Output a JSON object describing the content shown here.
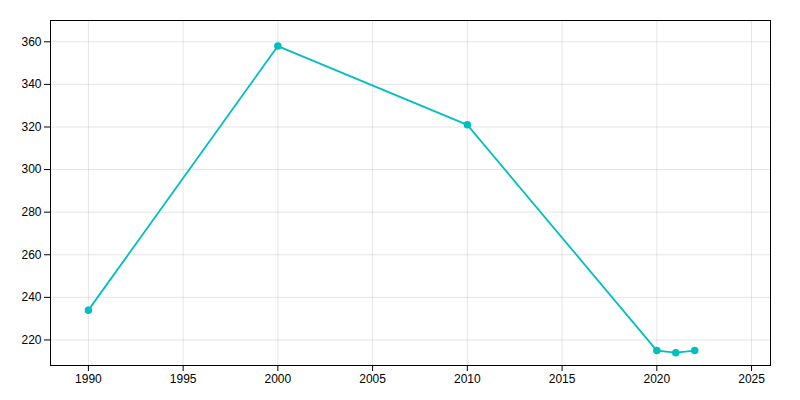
{
  "chart_data": {
    "type": "line",
    "x": [
      1990,
      2000,
      2010,
      2020,
      2021,
      2022
    ],
    "values": [
      234,
      358,
      321,
      215,
      214,
      215
    ],
    "color": "#00BFBF",
    "marker": "circle",
    "xlim": [
      1988,
      2026
    ],
    "xticks": [
      1990,
      1995,
      2000,
      2005,
      2010,
      2015,
      2020,
      2025
    ],
    "ylim": [
      208,
      370
    ],
    "yticks": [
      220,
      240,
      260,
      280,
      300,
      320,
      340,
      360
    ],
    "grid": true
  }
}
